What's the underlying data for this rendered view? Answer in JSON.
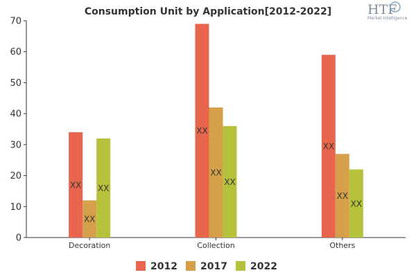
{
  "chart_data": {
    "type": "bar",
    "title": "Consumption Unit by  Application[2012-2022]",
    "categories": [
      "Decoration",
      "Collection",
      "Others"
    ],
    "series": [
      {
        "name": "2012",
        "values": [
          34,
          69,
          59
        ],
        "labels": [
          "XX",
          "XX",
          "XX"
        ],
        "color": "#e8664d"
      },
      {
        "name": "2017",
        "values": [
          12,
          42,
          27
        ],
        "labels": [
          "XX",
          "XX",
          "XX"
        ],
        "color": "#d6a04b"
      },
      {
        "name": "2022",
        "values": [
          32,
          36,
          22
        ],
        "labels": [
          "XX",
          "XX",
          "XX"
        ],
        "color": "#b6c23c"
      }
    ],
    "ylim": [
      0,
      70
    ],
    "yticks": [
      0,
      10,
      20,
      30,
      40,
      50,
      60,
      70
    ],
    "grid": false,
    "legend": "bottom"
  },
  "logo": {
    "text": "HTF",
    "subtext": "Market Intelligence"
  }
}
